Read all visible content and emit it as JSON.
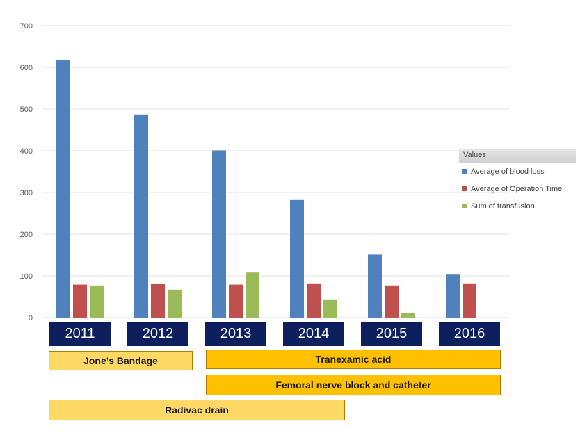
{
  "chart_data": {
    "type": "bar",
    "categories": [
      "2011",
      "2012",
      "2013",
      "2014",
      "2015",
      "2016"
    ],
    "series": [
      {
        "name": "Average of blood loss",
        "color": "#4f81bd",
        "values": [
          617,
          487,
          401,
          282,
          151,
          103
        ]
      },
      {
        "name": "Average of Operation Time",
        "color": "#c0504d",
        "values": [
          79,
          81,
          79,
          82,
          77,
          82
        ]
      },
      {
        "name": "Sum of transfusion",
        "color": "#9bbb59",
        "values": [
          77,
          67,
          108,
          42,
          10,
          0
        ]
      }
    ],
    "legend_title": "Values",
    "legend_position": "right",
    "ylim": [
      0,
      700
    ],
    "yticks": [
      0,
      100,
      200,
      300,
      400,
      500,
      600,
      700
    ],
    "grid": true
  },
  "colors": {
    "year_box": "#0d1f5c",
    "band_light": "#ffd966",
    "band_dark": "#ffc000"
  },
  "bands": {
    "jones_bandage": "Jone’s Bandage",
    "tranexamic_acid": "Tranexamic acid",
    "femoral_nerve_block": "Femoral nerve block and catheter",
    "radivac_drain": "Radivac drain"
  }
}
